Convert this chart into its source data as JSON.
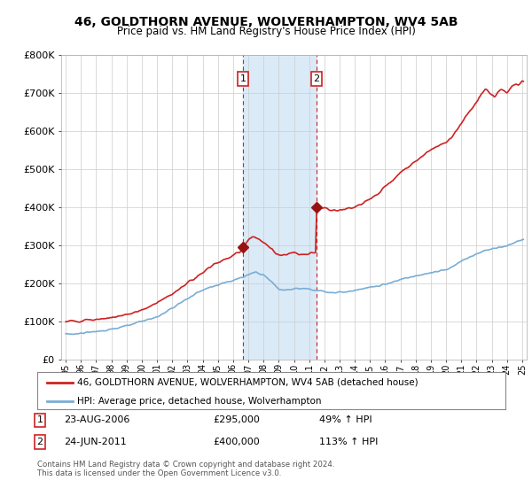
{
  "title": "46, GOLDTHORN AVENUE, WOLVERHAMPTON, WV4 5AB",
  "subtitle": "Price paid vs. HM Land Registry's House Price Index (HPI)",
  "background_color": "#ffffff",
  "plot_bg_color": "#ffffff",
  "shade_color": "#daeaf7",
  "grid_color": "#cccccc",
  "legend_line1": "46, GOLDTHORN AVENUE, WOLVERHAMPTON, WV4 5AB (detached house)",
  "legend_line2": "HPI: Average price, detached house, Wolverhampton",
  "footnote": "Contains HM Land Registry data © Crown copyright and database right 2024.\nThis data is licensed under the Open Government Licence v3.0.",
  "annotation1_date": "23-AUG-2006",
  "annotation1_price": "£295,000",
  "annotation1_hpi": "49% ↑ HPI",
  "annotation2_date": "24-JUN-2011",
  "annotation2_price": "£400,000",
  "annotation2_hpi": "113% ↑ HPI",
  "hpi_color": "#7aadd4",
  "price_color": "#cc2222",
  "marker_color": "#991111",
  "annotation_box_color": "#cc2222",
  "ylim": [
    0,
    800000
  ],
  "yticks": [
    0,
    100000,
    200000,
    300000,
    400000,
    500000,
    600000,
    700000,
    800000
  ],
  "ytick_labels": [
    "£0",
    "£100K",
    "£200K",
    "£300K",
    "£400K",
    "£500K",
    "£600K",
    "£700K",
    "£800K"
  ],
  "sale1_x": 2006.64,
  "sale1_y": 295000,
  "sale2_x": 2011.48,
  "sale2_y": 400000,
  "xmin": 1995,
  "xmax": 2025
}
